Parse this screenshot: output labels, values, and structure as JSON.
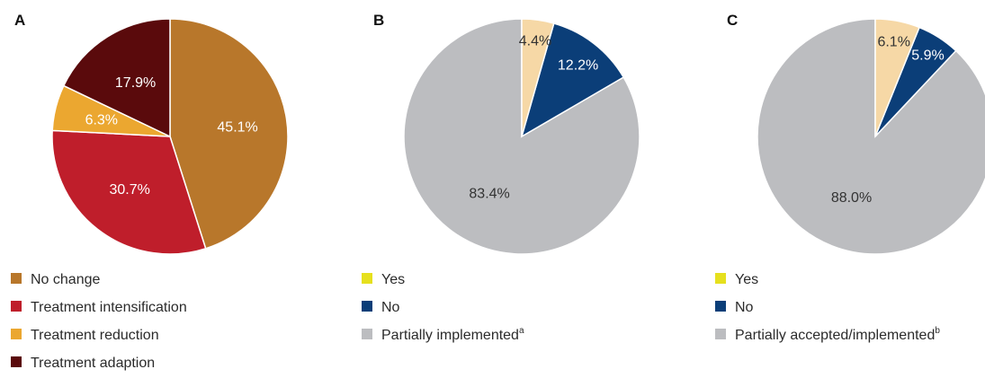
{
  "chart_data": [
    {
      "type": "pie",
      "panel_letter": "A",
      "slices": [
        {
          "label": "No change",
          "value": 45.1,
          "display": "45.1%",
          "color": "#b8772b",
          "label_color": "#ffffff"
        },
        {
          "label": "Treatment intensification",
          "value": 30.7,
          "display": "30.7%",
          "color": "#bf1e2b",
          "label_color": "#ffffff"
        },
        {
          "label": "Treatment reduction",
          "value": 6.3,
          "display": "6.3%",
          "color": "#eba730",
          "label_color": "#ffffff"
        },
        {
          "label": "Treatment adaption",
          "value": 17.9,
          "display": "17.9%",
          "color": "#5a0a0c",
          "label_color": "#ffffff"
        }
      ],
      "legend": [
        {
          "label": "No change",
          "color": "#b8772b"
        },
        {
          "label": "Treatment intensification",
          "color": "#bf1e2b"
        },
        {
          "label": "Treatment reduction",
          "color": "#eba730"
        },
        {
          "label": "Treatment adaption",
          "color": "#5a0a0c"
        }
      ]
    },
    {
      "type": "pie",
      "panel_letter": "B",
      "slices": [
        {
          "label": "Partially implemented",
          "value": 83.4,
          "display": "83.4%",
          "color": "#bcbdc0",
          "label_color": "#333333"
        },
        {
          "label": "No",
          "value": 12.2,
          "display": "12.2%",
          "color": "#0b3e78",
          "label_color": "#ffffff"
        },
        {
          "label": "Yes",
          "value": 4.4,
          "display": "4.4%",
          "color": "#f6d8a6",
          "label_color": "#333333"
        }
      ],
      "legend": [
        {
          "label": "Yes",
          "sup": "",
          "color": "#e6e01e"
        },
        {
          "label": "No",
          "sup": "",
          "color": "#0b3e78"
        },
        {
          "label": "Partially implemented",
          "sup": "a",
          "color": "#bcbdc0"
        }
      ]
    },
    {
      "type": "pie",
      "panel_letter": "C",
      "slices": [
        {
          "label": "Partially accepted/implemented",
          "value": 88.0,
          "display": "88.0%",
          "color": "#bcbdc0",
          "label_color": "#333333"
        },
        {
          "label": "No",
          "value": 5.9,
          "display": "5.9%",
          "color": "#0b3e78",
          "label_color": "#ffffff"
        },
        {
          "label": "Yes",
          "value": 6.1,
          "display": "6.1%",
          "color": "#f6d8a6",
          "label_color": "#333333"
        }
      ],
      "legend": [
        {
          "label": "Yes",
          "sup": "",
          "color": "#e6e01e"
        },
        {
          "label": "No",
          "sup": "",
          "color": "#0b3e78"
        },
        {
          "label": "Partially accepted/implemented",
          "sup": "b",
          "color": "#bcbdc0"
        }
      ]
    }
  ]
}
